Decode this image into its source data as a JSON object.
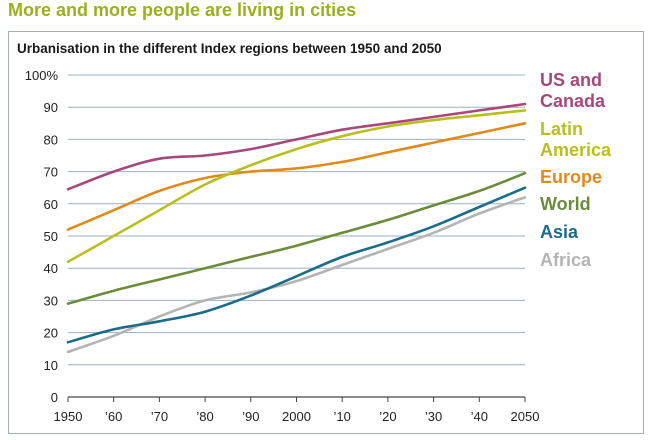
{
  "headline": "More and more people are living in cities",
  "chart_data": {
    "type": "line",
    "title": "Urbanisation in the different Index regions between 1950 and 2050",
    "xlabel": "",
    "ylabel": "",
    "x": [
      1950,
      1960,
      1970,
      1980,
      1990,
      2000,
      2010,
      2020,
      2030,
      2040,
      2050
    ],
    "x_tick_labels": [
      "1950",
      "’60",
      "’70",
      "’80",
      "’90",
      "2000",
      "’10",
      "’20",
      "’30",
      "’40",
      "2050"
    ],
    "y_ticks": [
      0,
      10,
      20,
      30,
      40,
      50,
      60,
      70,
      80,
      90,
      100
    ],
    "y_tick_labels": [
      "0",
      "10",
      "20",
      "30",
      "40",
      "50",
      "60",
      "70",
      "80",
      "90",
      "100%"
    ],
    "xlim": [
      1950,
      2050
    ],
    "ylim": [
      0,
      100
    ],
    "grid": "horizontal",
    "legend": "right, labels stacked",
    "series": [
      {
        "name": "US and Canada",
        "label_lines": [
          "US and",
          "Canada"
        ],
        "color": "#a8487a",
        "values": [
          64.5,
          70,
          74,
          75,
          77,
          80,
          83,
          85,
          87,
          89,
          91
        ]
      },
      {
        "name": "Latin America",
        "label_lines": [
          "Latin",
          "America"
        ],
        "color": "#b8bf1e",
        "values": [
          42,
          50,
          58,
          66,
          72,
          77,
          81,
          84,
          86,
          87.5,
          89
        ]
      },
      {
        "name": "Europe",
        "label_lines": [
          "Europe"
        ],
        "color": "#e08a1c",
        "values": [
          52,
          58,
          64,
          68,
          70,
          71,
          73,
          76,
          79,
          82,
          85
        ]
      },
      {
        "name": "World",
        "label_lines": [
          "World"
        ],
        "color": "#6b8c3a",
        "values": [
          29,
          33,
          36.5,
          40,
          43.5,
          47,
          51,
          55,
          59.5,
          64,
          69.5
        ]
      },
      {
        "name": "Asia",
        "label_lines": [
          "Asia"
        ],
        "color": "#1b6b8a",
        "values": [
          17,
          21,
          23.5,
          26.5,
          31.5,
          37.5,
          43.5,
          48,
          53,
          59,
          65
        ]
      },
      {
        "name": "Africa",
        "label_lines": [
          "Africa"
        ],
        "color": "#b4b4b4",
        "values": [
          14,
          19,
          25,
          30,
          32.5,
          36,
          41,
          46,
          51,
          57,
          62
        ]
      }
    ]
  }
}
